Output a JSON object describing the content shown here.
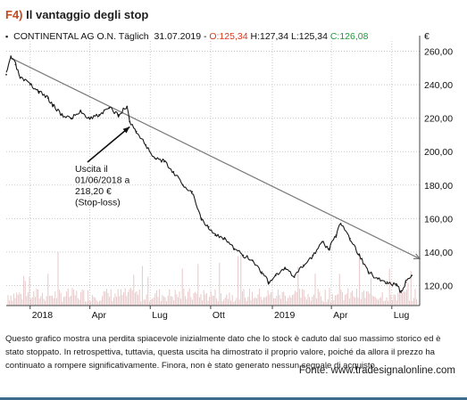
{
  "figure": {
    "number": "F4)",
    "title": "Il vantaggio degli stop"
  },
  "header": {
    "symbol": "▪",
    "instrument": "CONTINENTAL AG O.N. Täglich",
    "date": "31.07.2019 -",
    "open": "O:125,34",
    "high": "H:127,34",
    "low": "L:125,34",
    "close": "C:126,08"
  },
  "caption": "Questo grafico mostra una perdita spiacevole inizialmente dato che lo stock è caduto dal suo massimo storico ed è stato stoppato. In retrospettiva, tuttavia, questa uscita ha dimostrato il proprio valore, poiché da allora il prezzo ha continuato a rompere significativamente. Finora, non è stato generato nessun segnale di acquisto.",
  "source": "Fonte: www.tradesignalonline.com",
  "colors": {
    "price": "#1a1a1a",
    "trendline": "#7a7a7a",
    "volume": "#e6c8c8",
    "grid": "#c9c9c9",
    "figure_number": "#c14b1f",
    "open": "#d63a1c",
    "close": "#1e9a3a",
    "bottom_rule": "#3d6c8c"
  },
  "chart_data": {
    "type": "line",
    "currency_label": "€",
    "y_ticks": [
      "260,00",
      "240,00",
      "220,00",
      "200,00",
      "180,00",
      "160,00",
      "140,00",
      "120,00"
    ],
    "y_tick_values": [
      260,
      240,
      220,
      200,
      180,
      160,
      140,
      120
    ],
    "ylim": [
      108,
      264
    ],
    "x_ticks": [
      "2018",
      "Apr",
      "Lug",
      "Ott",
      "2019",
      "Apr",
      "Lug"
    ],
    "x_tick_dates": [
      "2018-01-02",
      "2018-04-02",
      "2018-07-02",
      "2018-10-01",
      "2019-01-02",
      "2019-04-01",
      "2019-07-01"
    ],
    "xlim": [
      "2017-11-27",
      "2019-08-12"
    ],
    "grid": true,
    "series": [
      {
        "x": [
          "2017-11-27",
          "2017-12-04",
          "2017-12-11",
          "2017-12-18",
          "2018-01-02",
          "2018-01-15",
          "2018-01-29",
          "2018-02-05",
          "2018-02-19",
          "2018-03-05",
          "2018-03-19",
          "2018-04-02",
          "2018-04-16",
          "2018-05-01",
          "2018-05-15",
          "2018-05-28",
          "2018-06-01",
          "2018-06-11",
          "2018-06-25",
          "2018-07-09",
          "2018-07-23",
          "2018-08-06",
          "2018-08-20",
          "2018-09-03",
          "2018-09-17",
          "2018-09-28",
          "2018-10-08",
          "2018-10-22",
          "2018-11-05",
          "2018-11-19",
          "2018-12-03",
          "2018-12-17",
          "2018-12-27",
          "2019-01-07",
          "2019-01-21",
          "2019-02-04",
          "2019-02-18",
          "2019-03-04",
          "2019-03-18",
          "2019-03-29",
          "2019-04-08",
          "2019-04-15",
          "2019-04-29",
          "2019-05-13",
          "2019-05-27",
          "2019-06-10",
          "2019-06-24",
          "2019-07-08",
          "2019-07-15",
          "2019-07-22",
          "2019-07-31"
        ],
        "values": [
          246,
          257,
          252,
          244,
          240,
          236,
          232,
          228,
          222,
          220,
          224,
          220,
          222,
          226,
          222,
          227,
          218,
          212,
          204,
          196,
          194,
          188,
          180,
          176,
          160,
          155,
          150,
          148,
          142,
          138,
          135,
          128,
          122,
          126,
          130,
          125,
          132,
          138,
          146,
          142,
          150,
          157,
          148,
          138,
          128,
          124,
          122,
          120,
          116,
          122,
          126
        ]
      }
    ],
    "trendline": {
      "points": [
        [
          "2017-12-04",
          256
        ],
        [
          "2019-08-12",
          136
        ]
      ]
    },
    "annotation": {
      "lines": [
        "Uscita il",
        "01/06/2018 a",
        "218,20 €",
        "(Stop-loss)"
      ],
      "target": [
        "2018-06-01",
        218
      ]
    }
  }
}
